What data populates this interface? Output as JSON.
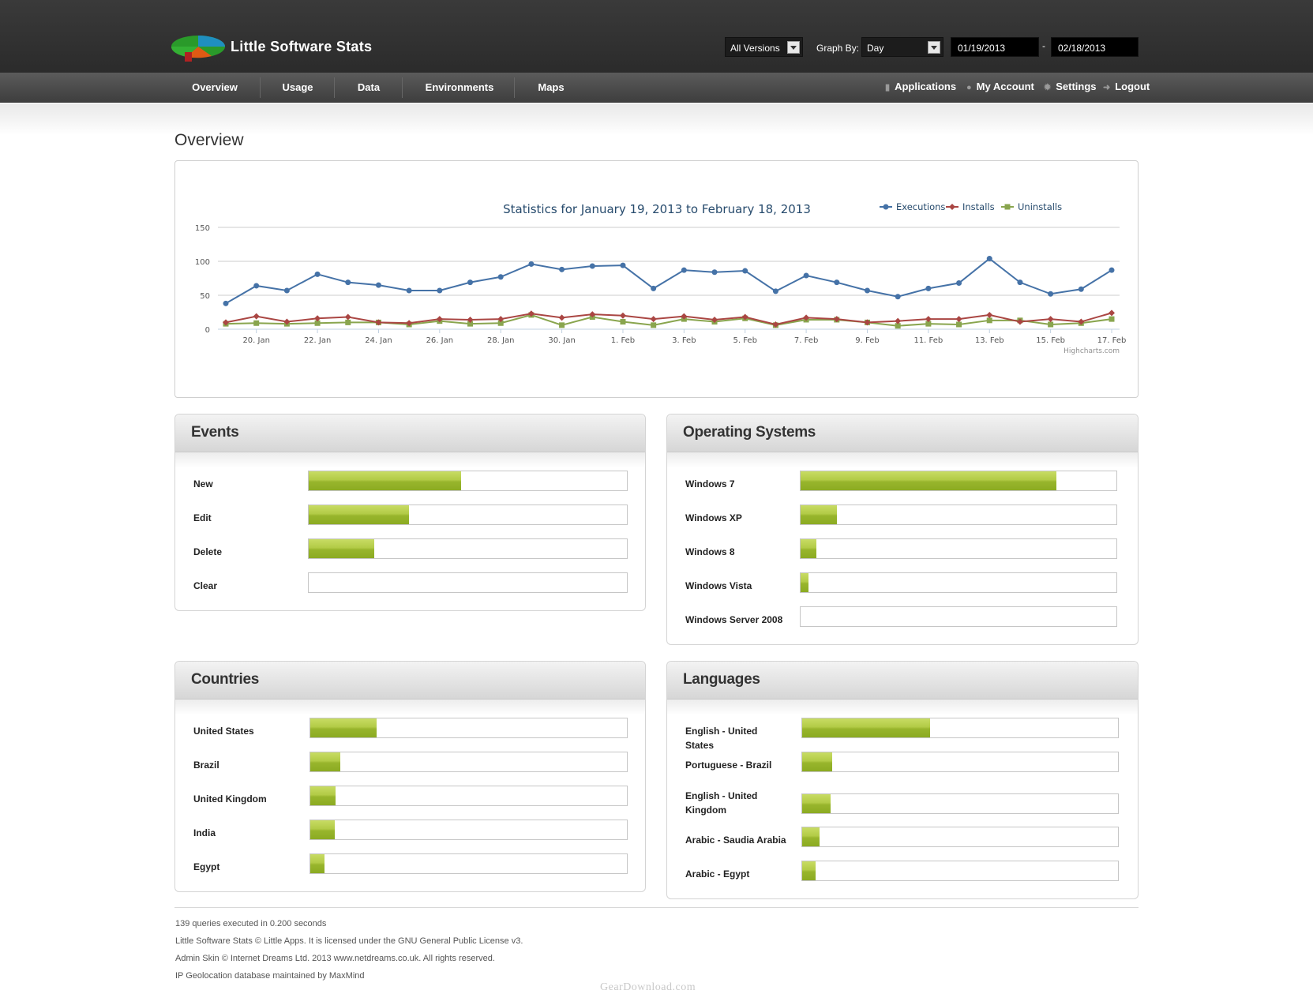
{
  "header": {
    "app_title": "Little Software Stats",
    "version_select": "All Versions",
    "graph_by_label": "Graph By:",
    "graph_by_value": "Day",
    "start_date": "01/19/2013",
    "date_separator": "-",
    "end_date": "02/18/2013"
  },
  "nav": {
    "items": [
      "Overview",
      "Usage",
      "Data",
      "Environments",
      "Maps"
    ],
    "right": [
      {
        "label": "Applications",
        "icon": "bar-chart-icon"
      },
      {
        "label": "My Account",
        "icon": "user-icon"
      },
      {
        "label": "Settings",
        "icon": "gear-icon"
      },
      {
        "label": "Logout",
        "icon": "arrow-right-icon"
      }
    ]
  },
  "page": {
    "title": "Overview"
  },
  "chart_data": {
    "type": "line",
    "title": "Statistics for January 19, 2013 to February 18, 2013",
    "credit": "Highcharts.com",
    "legend_position": "top-right",
    "grid": true,
    "ylim": [
      0,
      150
    ],
    "y_ticks": [
      0,
      50,
      100,
      150
    ],
    "x_tick_labels": [
      "20. Jan",
      "22. Jan",
      "24. Jan",
      "26. Jan",
      "28. Jan",
      "30. Jan",
      "1. Feb",
      "3. Feb",
      "5. Feb",
      "7. Feb",
      "9. Feb",
      "11. Feb",
      "13. Feb",
      "15. Feb",
      "17. Feb"
    ],
    "x_start": "2013-01-19",
    "x_end": "2013-02-18",
    "series": [
      {
        "name": "Executions",
        "color": "#4572a7",
        "marker": "circle",
        "values": [
          38,
          64,
          57,
          81,
          69,
          65,
          57,
          57,
          69,
          77,
          96,
          88,
          93,
          94,
          60,
          87,
          84,
          86,
          56,
          79,
          69,
          57,
          48,
          60,
          68,
          104,
          69,
          52,
          59,
          87
        ]
      },
      {
        "name": "Installs",
        "color": "#aa4643",
        "marker": "diamond",
        "values": [
          10,
          19,
          11,
          16,
          18,
          10,
          9,
          15,
          14,
          15,
          23,
          17,
          22,
          20,
          15,
          19,
          14,
          18,
          7,
          17,
          15,
          10,
          12,
          15,
          15,
          21,
          11,
          15,
          11,
          24
        ]
      },
      {
        "name": "Uninstalls",
        "color": "#89a54e",
        "marker": "square",
        "values": [
          8,
          9,
          8,
          9,
          10,
          10,
          7,
          12,
          8,
          9,
          21,
          6,
          18,
          11,
          6,
          15,
          11,
          16,
          6,
          14,
          14,
          10,
          5,
          8,
          7,
          13,
          13,
          7,
          9,
          15
        ]
      }
    ]
  },
  "panels": {
    "events": {
      "title": "Events",
      "rows": [
        {
          "label": "New",
          "pct": 0.48
        },
        {
          "label": "Edit",
          "pct": 0.315
        },
        {
          "label": "Delete",
          "pct": 0.205
        },
        {
          "label": "Clear",
          "pct": 0.0
        }
      ]
    },
    "os": {
      "title": "Operating Systems",
      "rows": [
        {
          "label": "Windows 7",
          "pct": 0.81
        },
        {
          "label": "Windows XP",
          "pct": 0.115
        },
        {
          "label": "Windows 8",
          "pct": 0.05
        },
        {
          "label": "Windows Vista",
          "pct": 0.025
        },
        {
          "label": "Windows Server 2008",
          "pct": 0.0
        }
      ]
    },
    "countries": {
      "title": "Countries",
      "rows": [
        {
          "label": "United States",
          "pct": 0.21
        },
        {
          "label": "Brazil",
          "pct": 0.095
        },
        {
          "label": "United Kingdom",
          "pct": 0.08
        },
        {
          "label": "India",
          "pct": 0.078
        },
        {
          "label": "Egypt",
          "pct": 0.045
        }
      ]
    },
    "languages": {
      "title": "Languages",
      "rows": [
        {
          "label": "English - United States",
          "pct": 0.405
        },
        {
          "label": "Portuguese - Brazil",
          "pct": 0.095
        },
        {
          "label": "English - United Kingdom",
          "pct": 0.09
        },
        {
          "label": "Arabic - Saudia Arabia",
          "pct": 0.055
        },
        {
          "label": "Arabic - Egypt",
          "pct": 0.042
        }
      ]
    }
  },
  "footer": {
    "queries": "139 queries executed in 0.200 seconds",
    "license": "Little Software Stats © Little Apps. It is licensed under the GNU General Public License v3.",
    "skin": "Admin Skin © Internet Dreams Ltd. 2013 www.netdreams.co.uk. All rights reserved.",
    "geo": "IP Geolocation database maintained by MaxMind"
  },
  "watermark": "GearDownload.com"
}
